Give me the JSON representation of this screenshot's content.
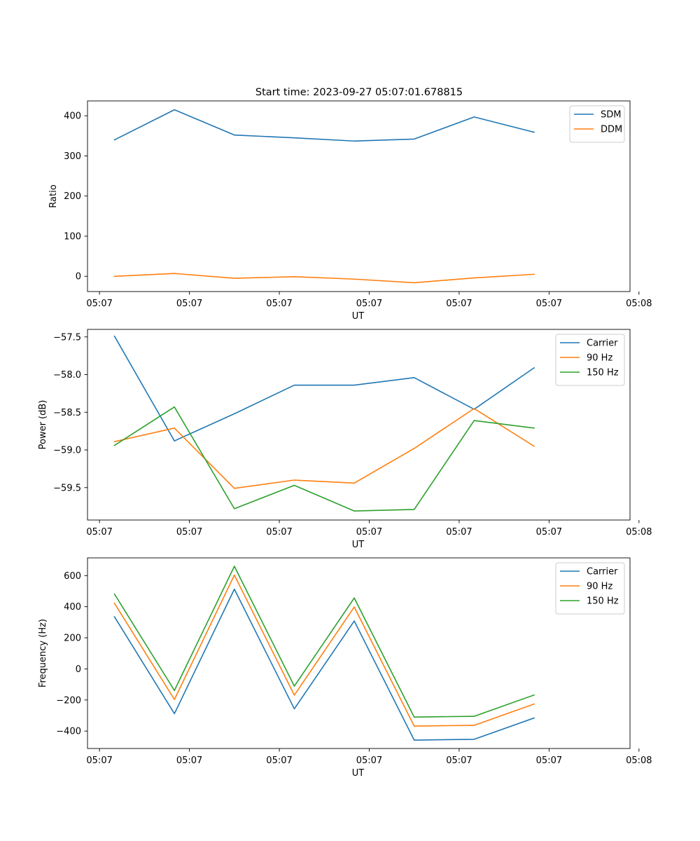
{
  "figure_title": "Start time: 2023-09-27 05:07:01.678815",
  "colors": {
    "blue": "#1f77b4",
    "orange": "#ff7f0e",
    "green": "#2ca02c"
  },
  "chart_data": [
    {
      "type": "line",
      "xlabel": "UT",
      "ylabel": "Ratio",
      "x_tick_labels": [
        "05:07",
        "05:07",
        "05:07",
        "05:07",
        "05:07",
        "05:07",
        "05:08"
      ],
      "x_index_range": [
        -0.45,
        8.6
      ],
      "x_tick_positions": [
        -0.25,
        1.25,
        2.75,
        4.25,
        5.75,
        7.25,
        8.75
      ],
      "ylim": [
        -38,
        437
      ],
      "y_ticks": [
        0,
        100,
        200,
        300,
        400
      ],
      "y_tick_labels": [
        "0",
        "100",
        "200",
        "300",
        "400"
      ],
      "legend_position": "top-right",
      "series": [
        {
          "name": "SDM",
          "color": "#1f77b4",
          "values": [
            340,
            415,
            352,
            345,
            337,
            342,
            397,
            359
          ]
        },
        {
          "name": "DDM",
          "color": "#ff7f0e",
          "values": [
            0,
            7,
            -5,
            -1,
            -7,
            -16,
            -4,
            5
          ]
        }
      ]
    },
    {
      "type": "line",
      "xlabel": "UT",
      "ylabel": "Power (dB)",
      "x_tick_labels": [
        "05:07",
        "05:07",
        "05:07",
        "05:07",
        "05:07",
        "05:07",
        "05:08"
      ],
      "x_index_range": [
        -0.45,
        8.6
      ],
      "x_tick_positions": [
        -0.25,
        1.25,
        2.75,
        4.25,
        5.75,
        7.25,
        8.75
      ],
      "ylim": [
        -59.93,
        -57.4
      ],
      "y_ticks": [
        -57.5,
        -58.0,
        -58.5,
        -59.0,
        -59.5
      ],
      "y_tick_labels": [
        "−57.5",
        "−58.0",
        "−58.5",
        "−59.0",
        "−59.5"
      ],
      "legend_position": "top-right",
      "series": [
        {
          "name": "Carrier",
          "color": "#1f77b4",
          "values": [
            -57.49,
            -58.88,
            -58.52,
            -58.14,
            -58.14,
            -58.04,
            -58.46,
            -57.91
          ]
        },
        {
          "name": "90 Hz",
          "color": "#ff7f0e",
          "values": [
            -58.89,
            -58.71,
            -59.51,
            -59.4,
            -59.44,
            -58.98,
            -58.45,
            -58.95
          ]
        },
        {
          "name": "150 Hz",
          "color": "#2ca02c",
          "values": [
            -58.94,
            -58.43,
            -59.78,
            -59.47,
            -59.81,
            -59.79,
            -58.61,
            -58.71
          ]
        }
      ]
    },
    {
      "type": "line",
      "xlabel": "UT",
      "ylabel": "Frequency (Hz)",
      "x_tick_labels": [
        "05:07",
        "05:07",
        "05:07",
        "05:07",
        "05:07",
        "05:07",
        "05:08"
      ],
      "x_index_range": [
        -0.45,
        8.6
      ],
      "x_tick_positions": [
        -0.25,
        1.25,
        2.75,
        4.25,
        5.75,
        7.25,
        8.75
      ],
      "ylim": [
        -512,
        714
      ],
      "y_ticks": [
        600,
        400,
        200,
        0,
        -200,
        -400
      ],
      "y_tick_labels": [
        "600",
        "400",
        "200",
        "0",
        "−200",
        "−400"
      ],
      "legend_position": "top-right",
      "series": [
        {
          "name": "Carrier",
          "color": "#1f77b4",
          "values": [
            335,
            -288,
            513,
            -257,
            308,
            -458,
            -453,
            -316
          ]
        },
        {
          "name": "90 Hz",
          "color": "#ff7f0e",
          "values": [
            422,
            -197,
            603,
            -169,
            398,
            -368,
            -363,
            -226
          ]
        },
        {
          "name": "150 Hz",
          "color": "#2ca02c",
          "values": [
            481,
            -139,
            660,
            -111,
            456,
            -310,
            -305,
            -168
          ]
        }
      ]
    }
  ]
}
